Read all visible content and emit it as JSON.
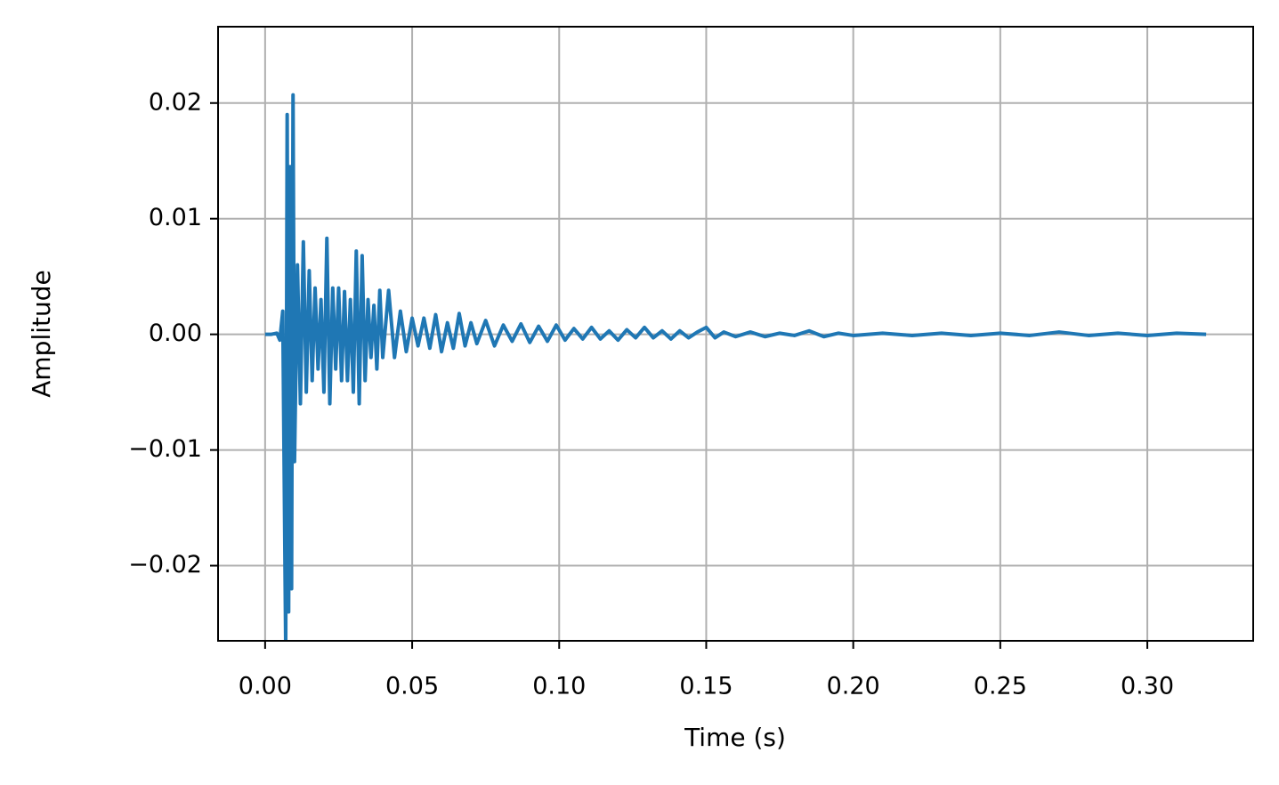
{
  "chart_data": {
    "type": "line",
    "xlabel": "Time (s)",
    "ylabel": "Amplitude",
    "color": "#1f77b4",
    "grid": true,
    "xlim": [
      -0.016,
      0.336
    ],
    "ylim": [
      -0.0265,
      0.0266
    ],
    "xticks": [
      {
        "value": 0,
        "label": "0.00"
      },
      {
        "value": 0.05,
        "label": "0.05"
      },
      {
        "value": 0.1,
        "label": "0.10"
      },
      {
        "value": 0.15,
        "label": "0.15"
      },
      {
        "value": 0.2,
        "label": "0.20"
      },
      {
        "value": 0.25,
        "label": "0.25"
      },
      {
        "value": 0.3,
        "label": "0.30"
      }
    ],
    "yticks": [
      {
        "value": -0.02,
        "label": "−0.02"
      },
      {
        "value": -0.01,
        "label": "−0.01"
      },
      {
        "value": 0,
        "label": "0.00"
      },
      {
        "value": 0.01,
        "label": "0.01"
      },
      {
        "value": 0.02,
        "label": "0.02"
      }
    ],
    "x": [
      0,
      0.002,
      0.004,
      0.005,
      0.006,
      0.007,
      0.0075,
      0.008,
      0.0085,
      0.009,
      0.0095,
      0.01,
      0.011,
      0.012,
      0.013,
      0.014,
      0.015,
      0.016,
      0.017,
      0.018,
      0.019,
      0.02,
      0.021,
      0.022,
      0.023,
      0.024,
      0.025,
      0.026,
      0.027,
      0.028,
      0.029,
      0.03,
      0.031,
      0.032,
      0.033,
      0.034,
      0.035,
      0.036,
      0.037,
      0.038,
      0.039,
      0.04,
      0.042,
      0.044,
      0.046,
      0.048,
      0.05,
      0.052,
      0.054,
      0.056,
      0.058,
      0.06,
      0.062,
      0.064,
      0.066,
      0.068,
      0.07,
      0.072,
      0.075,
      0.078,
      0.081,
      0.084,
      0.087,
      0.09,
      0.093,
      0.096,
      0.099,
      0.102,
      0.105,
      0.108,
      0.111,
      0.114,
      0.117,
      0.12,
      0.123,
      0.126,
      0.129,
      0.132,
      0.135,
      0.138,
      0.141,
      0.144,
      0.147,
      0.15,
      0.153,
      0.156,
      0.16,
      0.165,
      0.17,
      0.175,
      0.18,
      0.185,
      0.19,
      0.195,
      0.2,
      0.21,
      0.22,
      0.23,
      0.24,
      0.25,
      0.26,
      0.27,
      0.28,
      0.29,
      0.3,
      0.31,
      0.32
    ],
    "values": [
      0,
      0,
      0.0001,
      -0.0005,
      0.002,
      -0.027,
      0.019,
      -0.024,
      0.0145,
      -0.022,
      0.0207,
      -0.011,
      0.006,
      -0.006,
      0.008,
      -0.005,
      0.0055,
      -0.004,
      0.004,
      -0.003,
      0.003,
      -0.005,
      0.0083,
      -0.006,
      0.004,
      -0.003,
      0.004,
      -0.004,
      0.0037,
      -0.004,
      0.003,
      -0.005,
      0.0072,
      -0.006,
      0.0068,
      -0.004,
      0.003,
      -0.002,
      0.0025,
      -0.003,
      0.0038,
      -0.002,
      0.0038,
      -0.002,
      0.002,
      -0.0015,
      0.0014,
      -0.001,
      0.0014,
      -0.0012,
      0.0017,
      -0.0015,
      0.001,
      -0.0012,
      0.0018,
      -0.001,
      0.001,
      -0.0008,
      0.0012,
      -0.001,
      0.0008,
      -0.0006,
      0.0009,
      -0.0007,
      0.0007,
      -0.0006,
      0.0008,
      -0.0005,
      0.0005,
      -0.0004,
      0.0006,
      -0.0004,
      0.0003,
      -0.0005,
      0.0004,
      -0.0003,
      0.0006,
      -0.0003,
      0.0003,
      -0.0004,
      0.0003,
      -0.0003,
      0.0002,
      0.0006,
      -0.0003,
      0.0002,
      -0.0002,
      0.0002,
      -0.0002,
      0.0001,
      -0.0001,
      0.0003,
      -0.0002,
      0.0001,
      -0.0001,
      0.0001,
      -0.0001,
      0.0001,
      -0.0001,
      0.0001,
      -0.0001,
      0.0002,
      -0.0001,
      0.0001,
      -0.0001,
      0.0001,
      0
    ]
  }
}
